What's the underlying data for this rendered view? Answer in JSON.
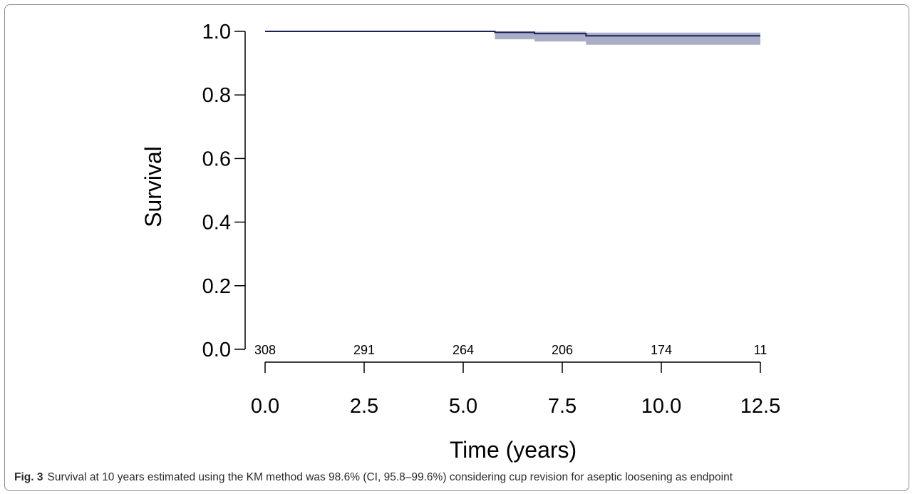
{
  "chart_data": {
    "type": "line",
    "xlabel": "Time (years)",
    "ylabel": "Survival",
    "xlim": [
      0,
      12.5
    ],
    "ylim": [
      0,
      1
    ],
    "x_ticks": [
      "0.0",
      "2.5",
      "5.0",
      "7.5",
      "10.0",
      "12.5"
    ],
    "y_ticks": [
      "0.0",
      "0.2",
      "0.4",
      "0.6",
      "0.8",
      "1.0"
    ],
    "series": [
      {
        "x": [
          0,
          5.8,
          6.8,
          8.1,
          12.5
        ],
        "y": [
          1.0,
          0.997,
          0.993,
          0.986,
          0.986
        ],
        "ci_lower": [
          1.0,
          0.975,
          0.968,
          0.958,
          0.958
        ],
        "ci_upper": [
          1.0,
          1.0,
          0.999,
          0.996,
          0.996
        ]
      }
    ],
    "numbers_at_risk": {
      "x": [
        0,
        2.5,
        5.0,
        7.5,
        10.0,
        12.5
      ],
      "values": [
        "308",
        "291",
        "264",
        "206",
        "174",
        "11"
      ]
    },
    "colors": {
      "line": "#1c1f5c",
      "ci_band": "#a9adc6"
    },
    "grid": false,
    "legend": "none"
  },
  "caption": {
    "label": "Fig. 3",
    "text": "Survival at 10 years estimated using the KM method was 98.6% (CI, 95.8–99.6%) considering cup revision for aseptic loosening as endpoint"
  }
}
